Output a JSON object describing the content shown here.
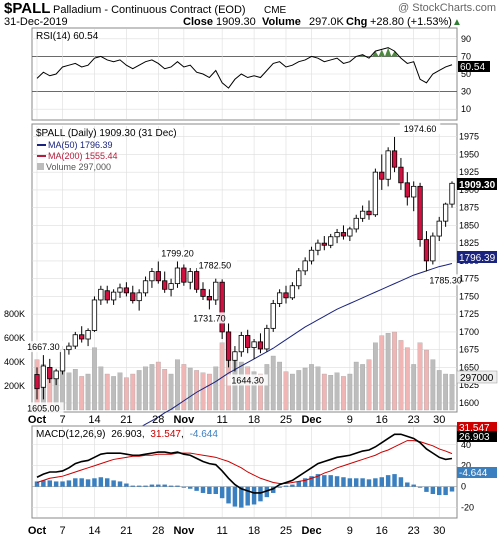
{
  "header": {
    "symbol": "$PALL",
    "name": "Palladium - Continuous Contract (EOD)",
    "exchange": "CME",
    "watermark": "@ StockCharts.com",
    "date": "31-Dec-2019",
    "close_label": "Close",
    "close_value": "1909.30",
    "volume_label": "Volume",
    "volume_value": "297.0K",
    "chg_label": "Chg",
    "chg_value": "+28.80 (+1.53%)",
    "chg_arrow": "▲"
  },
  "rsi_panel": {
    "legend": "RSI(14) 60.54",
    "last_value": "60.54",
    "y_ticks": [
      90,
      70,
      50,
      30,
      10
    ],
    "overbought": 70,
    "oversold": 30,
    "line_color": "#000000",
    "overbought_fill": "#3a7d2a"
  },
  "price_panel": {
    "legend_title": "$PALL (Daily) 1909.30 (31 Dec)",
    "legend_ma50": "MA(50) 1796.39",
    "legend_ma200": "MA(200) 1555.44",
    "legend_volume": "Volume 297,000",
    "price_ticks": [
      1975,
      1950,
      1925,
      1900,
      1875,
      1850,
      1825,
      1800,
      1775,
      1750,
      1725,
      1700,
      1675,
      1650,
      1625,
      1600
    ],
    "volume_ticks": [
      "800K",
      "600K",
      "400K",
      "200K"
    ],
    "last_price_label": "1909.30",
    "ma50_label": "1796.39",
    "volume_last_label": "297000",
    "annotations": [
      {
        "text": "1667.30",
        "index": 1,
        "value": 1667.3,
        "pos": "above"
      },
      {
        "text": "1605.00",
        "index": 1,
        "value": 1605.0,
        "pos": "below"
      },
      {
        "text": "1799.20",
        "index": 22,
        "value": 1799.2,
        "pos": "above"
      },
      {
        "text": "1782.50",
        "index": 25,
        "value": 1782.5,
        "pos": "above-right"
      },
      {
        "text": "1731.70",
        "index": 27,
        "value": 1731.7,
        "pos": "below"
      },
      {
        "text": "1644.30",
        "index": 33,
        "value": 1644.3,
        "pos": "below"
      },
      {
        "text": "1974.60",
        "index": 60,
        "value": 1974.6,
        "pos": "above"
      },
      {
        "text": "1785.30",
        "index": 64,
        "value": 1785.3,
        "pos": "below"
      }
    ]
  },
  "macd_panel": {
    "legend_name": "MACD(12,26,9)",
    "legend_macd": "26.903",
    "legend_signal": "31.547",
    "legend_hist": "-4.644",
    "y_ticks": [
      40,
      20,
      0,
      -20
    ],
    "last_macd": "26.903",
    "last_signal": "31.547",
    "last_hist": "-4.644",
    "macd_color": "#000000",
    "signal_color": "#cc0000",
    "hist_color": "#3a7fc0"
  },
  "x_axis": {
    "labels": [
      {
        "text": "Oct",
        "index": 0,
        "bold": true
      },
      {
        "text": "7",
        "index": 4,
        "bold": false
      },
      {
        "text": "14",
        "index": 9,
        "bold": false
      },
      {
        "text": "21",
        "index": 14,
        "bold": false
      },
      {
        "text": "28",
        "index": 19,
        "bold": false
      },
      {
        "text": "Nov",
        "index": 23,
        "bold": true
      },
      {
        "text": "11",
        "index": 29,
        "bold": false
      },
      {
        "text": "18",
        "index": 34,
        "bold": false
      },
      {
        "text": "25",
        "index": 39,
        "bold": false
      },
      {
        "text": "Dec",
        "index": 43,
        "bold": true
      },
      {
        "text": "9",
        "index": 49,
        "bold": false
      },
      {
        "text": "16",
        "index": 54,
        "bold": false
      },
      {
        "text": "23",
        "index": 59,
        "bold": false
      },
      {
        "text": "30",
        "index": 63,
        "bold": false
      }
    ]
  },
  "colors": {
    "up_fill": "#ffffff",
    "down_fill": "#d01040",
    "candle_stroke": "#000000",
    "ma50": "#1a237e",
    "ma200": "#b71c3c",
    "volume_up": "#bdbdbd",
    "volume_down": "#f0b6b6",
    "grid": "#dddddd",
    "panel_border": "#888888"
  },
  "chart_data": {
    "type": "candlestick",
    "title": "$PALL Palladium - Continuous Contract (EOD)",
    "period": "Daily, Oct 2019 - 31 Dec 2019",
    "price_ylim": [
      1590,
      1990
    ],
    "volume_ylim": [
      0,
      1000000
    ],
    "candles": [
      {
        "o": 1640,
        "h": 1650,
        "l": 1605,
        "c": 1620,
        "v": 420000
      },
      {
        "o": 1622,
        "h": 1667.3,
        "l": 1605,
        "c": 1652,
        "v": 380000
      },
      {
        "o": 1650,
        "h": 1662,
        "l": 1628,
        "c": 1634,
        "v": 300000
      },
      {
        "o": 1634,
        "h": 1648,
        "l": 1625,
        "c": 1645,
        "v": 260000
      },
      {
        "o": 1645,
        "h": 1680,
        "l": 1640,
        "c": 1675,
        "v": 450000
      },
      {
        "o": 1675,
        "h": 1685,
        "l": 1668,
        "c": 1680,
        "v": 310000
      },
      {
        "o": 1680,
        "h": 1700,
        "l": 1676,
        "c": 1696,
        "v": 340000
      },
      {
        "o": 1696,
        "h": 1708,
        "l": 1685,
        "c": 1690,
        "v": 280000
      },
      {
        "o": 1690,
        "h": 1705,
        "l": 1680,
        "c": 1702,
        "v": 300000
      },
      {
        "o": 1702,
        "h": 1750,
        "l": 1700,
        "c": 1745,
        "v": 520000
      },
      {
        "o": 1745,
        "h": 1765,
        "l": 1738,
        "c": 1760,
        "v": 360000
      },
      {
        "o": 1758,
        "h": 1765,
        "l": 1740,
        "c": 1745,
        "v": 300000
      },
      {
        "o": 1745,
        "h": 1760,
        "l": 1738,
        "c": 1756,
        "v": 280000
      },
      {
        "o": 1756,
        "h": 1768,
        "l": 1748,
        "c": 1762,
        "v": 310000
      },
      {
        "o": 1762,
        "h": 1770,
        "l": 1750,
        "c": 1755,
        "v": 270000
      },
      {
        "o": 1755,
        "h": 1765,
        "l": 1740,
        "c": 1744,
        "v": 300000
      },
      {
        "o": 1744,
        "h": 1760,
        "l": 1730,
        "c": 1755,
        "v": 330000
      },
      {
        "o": 1755,
        "h": 1778,
        "l": 1750,
        "c": 1772,
        "v": 360000
      },
      {
        "o": 1772,
        "h": 1790,
        "l": 1762,
        "c": 1785,
        "v": 380000
      },
      {
        "o": 1785,
        "h": 1799.2,
        "l": 1768,
        "c": 1772,
        "v": 400000
      },
      {
        "o": 1772,
        "h": 1785,
        "l": 1755,
        "c": 1760,
        "v": 340000
      },
      {
        "o": 1760,
        "h": 1775,
        "l": 1750,
        "c": 1768,
        "v": 300000
      },
      {
        "o": 1768,
        "h": 1799.2,
        "l": 1762,
        "c": 1790,
        "v": 420000
      },
      {
        "o": 1790,
        "h": 1795,
        "l": 1765,
        "c": 1770,
        "v": 380000
      },
      {
        "o": 1770,
        "h": 1790,
        "l": 1760,
        "c": 1785,
        "v": 350000
      },
      {
        "o": 1785,
        "h": 1790,
        "l": 1755,
        "c": 1760,
        "v": 330000
      },
      {
        "o": 1760,
        "h": 1770,
        "l": 1745,
        "c": 1750,
        "v": 310000
      },
      {
        "o": 1750,
        "h": 1760,
        "l": 1731.7,
        "c": 1745,
        "v": 300000
      },
      {
        "o": 1745,
        "h": 1775,
        "l": 1738,
        "c": 1770,
        "v": 360000
      },
      {
        "o": 1770,
        "h": 1774,
        "l": 1690,
        "c": 1700,
        "v": 560000
      },
      {
        "o": 1700,
        "h": 1712,
        "l": 1650,
        "c": 1660,
        "v": 620000
      },
      {
        "o": 1660,
        "h": 1680,
        "l": 1644.3,
        "c": 1672,
        "v": 480000
      },
      {
        "o": 1672,
        "h": 1700,
        "l": 1665,
        "c": 1695,
        "v": 400000
      },
      {
        "o": 1695,
        "h": 1703,
        "l": 1670,
        "c": 1678,
        "v": 360000
      },
      {
        "o": 1678,
        "h": 1690,
        "l": 1662,
        "c": 1686,
        "v": 320000
      },
      {
        "o": 1686,
        "h": 1698,
        "l": 1670,
        "c": 1676,
        "v": 300000
      },
      {
        "o": 1676,
        "h": 1710,
        "l": 1672,
        "c": 1705,
        "v": 380000
      },
      {
        "o": 1705,
        "h": 1745,
        "l": 1700,
        "c": 1740,
        "v": 450000
      },
      {
        "o": 1740,
        "h": 1760,
        "l": 1735,
        "c": 1755,
        "v": 400000
      },
      {
        "o": 1755,
        "h": 1765,
        "l": 1740,
        "c": 1748,
        "v": 320000
      },
      {
        "o": 1748,
        "h": 1770,
        "l": 1745,
        "c": 1765,
        "v": 300000
      },
      {
        "o": 1765,
        "h": 1790,
        "l": 1760,
        "c": 1786,
        "v": 330000
      },
      {
        "o": 1786,
        "h": 1805,
        "l": 1780,
        "c": 1800,
        "v": 350000
      },
      {
        "o": 1800,
        "h": 1820,
        "l": 1795,
        "c": 1815,
        "v": 380000
      },
      {
        "o": 1815,
        "h": 1830,
        "l": 1808,
        "c": 1825,
        "v": 360000
      },
      {
        "o": 1825,
        "h": 1835,
        "l": 1815,
        "c": 1822,
        "v": 300000
      },
      {
        "o": 1822,
        "h": 1838,
        "l": 1818,
        "c": 1834,
        "v": 290000
      },
      {
        "o": 1834,
        "h": 1845,
        "l": 1825,
        "c": 1840,
        "v": 310000
      },
      {
        "o": 1840,
        "h": 1850,
        "l": 1830,
        "c": 1835,
        "v": 280000
      },
      {
        "o": 1835,
        "h": 1848,
        "l": 1828,
        "c": 1845,
        "v": 300000
      },
      {
        "o": 1845,
        "h": 1865,
        "l": 1840,
        "c": 1860,
        "v": 400000
      },
      {
        "o": 1860,
        "h": 1878,
        "l": 1855,
        "c": 1870,
        "v": 380000
      },
      {
        "o": 1870,
        "h": 1885,
        "l": 1858,
        "c": 1865,
        "v": 420000
      },
      {
        "o": 1865,
        "h": 1930,
        "l": 1862,
        "c": 1925,
        "v": 560000
      },
      {
        "o": 1925,
        "h": 1950,
        "l": 1900,
        "c": 1915,
        "v": 620000
      },
      {
        "o": 1915,
        "h": 1960,
        "l": 1905,
        "c": 1955,
        "v": 640000
      },
      {
        "o": 1955,
        "h": 1974.6,
        "l": 1925,
        "c": 1932,
        "v": 650000
      },
      {
        "o": 1932,
        "h": 1945,
        "l": 1900,
        "c": 1910,
        "v": 580000
      },
      {
        "o": 1910,
        "h": 1925,
        "l": 1878,
        "c": 1890,
        "v": 520000
      },
      {
        "o": 1890,
        "h": 1912,
        "l": 1870,
        "c": 1905,
        "v": 380000
      },
      {
        "o": 1905,
        "h": 1910,
        "l": 1820,
        "c": 1830,
        "v": 560000
      },
      {
        "o": 1830,
        "h": 1842,
        "l": 1785.3,
        "c": 1800,
        "v": 500000
      },
      {
        "o": 1800,
        "h": 1840,
        "l": 1795,
        "c": 1835,
        "v": 420000
      },
      {
        "o": 1835,
        "h": 1862,
        "l": 1828,
        "c": 1856,
        "v": 330000
      },
      {
        "o": 1856,
        "h": 1882,
        "l": 1848,
        "c": 1880,
        "v": 300000
      },
      {
        "o": 1880,
        "h": 1912,
        "l": 1875,
        "c": 1909.3,
        "v": 297000
      }
    ],
    "ma50": [
      1510,
      1513,
      1516,
      1519,
      1522,
      1525,
      1528,
      1531,
      1534,
      1537,
      1541,
      1545,
      1549,
      1553,
      1557,
      1561,
      1565,
      1570,
      1575,
      1580,
      1586,
      1591,
      1597,
      1603,
      1609,
      1615,
      1620,
      1625,
      1630,
      1636,
      1642,
      1647,
      1652,
      1657,
      1662,
      1667,
      1672,
      1677,
      1683,
      1689,
      1695,
      1701,
      1707,
      1712,
      1717,
      1722,
      1727,
      1732,
      1736,
      1740,
      1744,
      1748,
      1752,
      1756,
      1760,
      1764,
      1768,
      1772,
      1776,
      1780,
      1783,
      1786,
      1789,
      1792,
      1794,
      1796.39
    ],
    "rsi": [
      45,
      52,
      48,
      50,
      58,
      60,
      62,
      58,
      60,
      68,
      70,
      66,
      64,
      66,
      60,
      56,
      60,
      64,
      66,
      62,
      56,
      58,
      64,
      58,
      60,
      52,
      50,
      46,
      54,
      40,
      34,
      44,
      50,
      46,
      48,
      46,
      54,
      62,
      64,
      58,
      60,
      64,
      66,
      70,
      68,
      64,
      66,
      68,
      62,
      64,
      70,
      72,
      68,
      76,
      78,
      80,
      76,
      68,
      62,
      64,
      44,
      40,
      50,
      54,
      58,
      60.54
    ],
    "macd": [
      9,
      12,
      14,
      14,
      15,
      18,
      22,
      24,
      25,
      28,
      31,
      32,
      32,
      32,
      31,
      30,
      30,
      31,
      32,
      33,
      33,
      32,
      33,
      31,
      30,
      27,
      24,
      22,
      21,
      15,
      8,
      2,
      -2,
      -4,
      -6,
      -6,
      -4,
      -2,
      2,
      4,
      6,
      10,
      14,
      18,
      22,
      24,
      26,
      28,
      29,
      30,
      32,
      34,
      35,
      38,
      42,
      46,
      50,
      50,
      48,
      46,
      42,
      36,
      32,
      28,
      26,
      26.903
    ],
    "signal": [
      4,
      6,
      8,
      9,
      10,
      12,
      14,
      16,
      18,
      20,
      22,
      24,
      26,
      27,
      28,
      29,
      29,
      30,
      30,
      31,
      31,
      31,
      32,
      32,
      32,
      31,
      30,
      29,
      28,
      26,
      24,
      21,
      18,
      14,
      11,
      8,
      6,
      4,
      3,
      3,
      4,
      5,
      6,
      8,
      10,
      13,
      15,
      18,
      20,
      22,
      24,
      26,
      28,
      30,
      33,
      35,
      38,
      41,
      44,
      44,
      43,
      41,
      39,
      36,
      34,
      31.547
    ]
  }
}
